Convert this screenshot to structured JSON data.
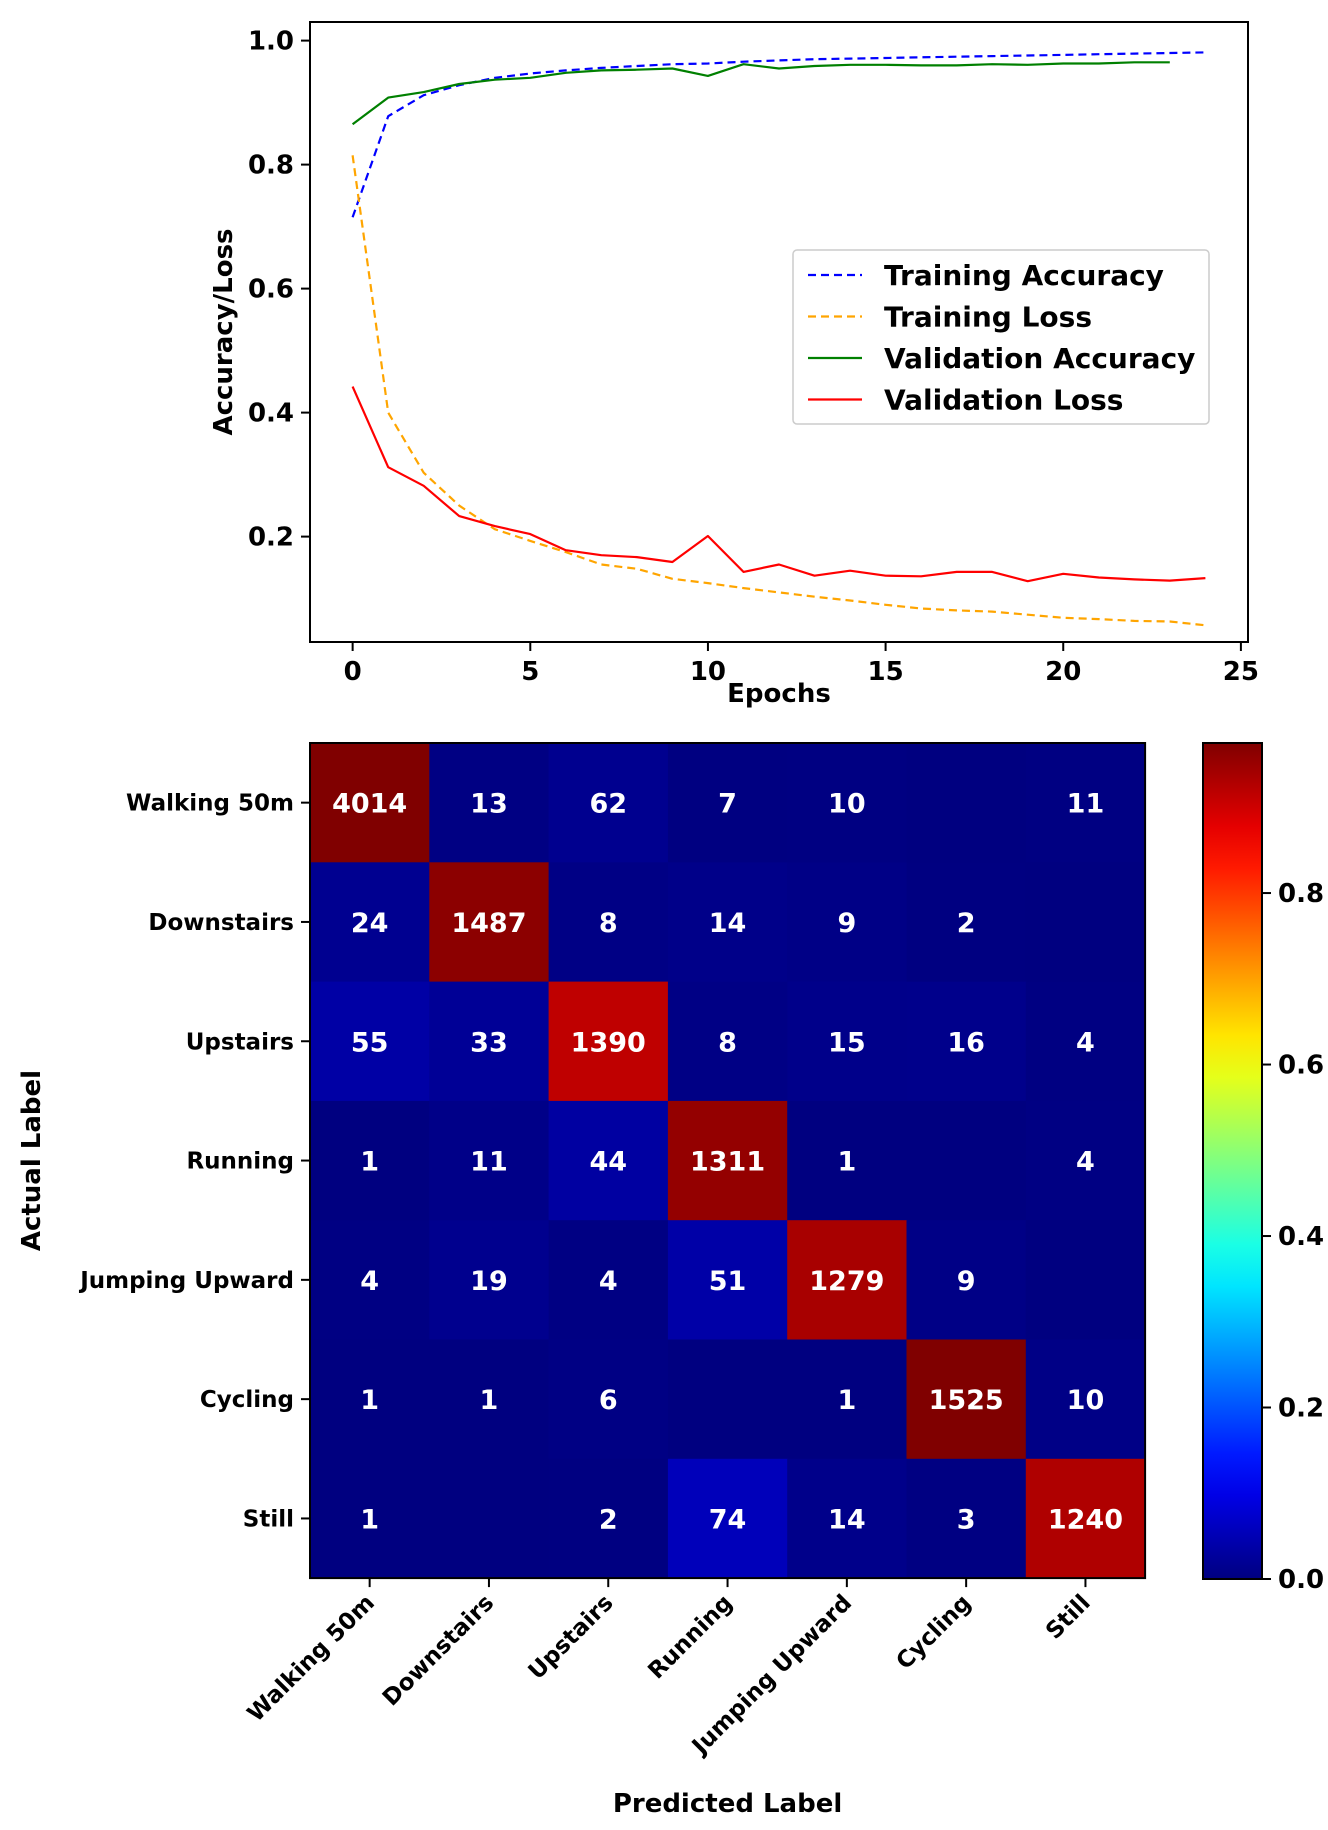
{
  "chart_data": [
    {
      "type": "line",
      "title": "",
      "xlabel": "Epochs",
      "ylabel": "Accuracy/Loss",
      "xlim": [
        -1.2,
        25.2
      ],
      "ylim": [
        0.03,
        1.03
      ],
      "xticks": [
        0,
        5,
        10,
        15,
        20,
        25
      ],
      "yticks": [
        0.2,
        0.4,
        0.6,
        0.8,
        1.0
      ],
      "xtick_labels": [
        "0",
        "5",
        "10",
        "15",
        "20",
        "25"
      ],
      "ytick_labels": [
        "0.2",
        "0.4",
        "0.6",
        "0.8",
        "1.0"
      ],
      "legend_position": "center-right",
      "grid": false,
      "series": [
        {
          "name": "Training Accuracy",
          "color": "#0000ff",
          "style": "dashed",
          "x": [
            0,
            1,
            2,
            3,
            4,
            5,
            6,
            7,
            8,
            9,
            10,
            11,
            12,
            13,
            14,
            15,
            16,
            17,
            18,
            19,
            20,
            21,
            22,
            23,
            24
          ],
          "values": [
            0.715,
            0.878,
            0.912,
            0.928,
            0.94,
            0.947,
            0.952,
            0.956,
            0.959,
            0.962,
            0.963,
            0.966,
            0.968,
            0.97,
            0.971,
            0.972,
            0.973,
            0.974,
            0.975,
            0.976,
            0.977,
            0.978,
            0.979,
            0.98,
            0.981
          ]
        },
        {
          "name": "Training Loss",
          "color": "#ffa500",
          "style": "dashed",
          "x": [
            0,
            1,
            2,
            3,
            4,
            5,
            6,
            7,
            8,
            9,
            10,
            11,
            12,
            13,
            14,
            15,
            16,
            17,
            18,
            19,
            20,
            21,
            22,
            23,
            24
          ],
          "values": [
            0.815,
            0.4,
            0.303,
            0.25,
            0.212,
            0.193,
            0.175,
            0.155,
            0.148,
            0.132,
            0.125,
            0.117,
            0.11,
            0.103,
            0.097,
            0.09,
            0.084,
            0.081,
            0.079,
            0.074,
            0.069,
            0.067,
            0.064,
            0.063,
            0.057
          ]
        },
        {
          "name": "Validation Accuracy",
          "color": "#008000",
          "style": "solid",
          "x": [
            0,
            1,
            2,
            3,
            4,
            5,
            6,
            7,
            8,
            9,
            10,
            11,
            12,
            13,
            14,
            15,
            16,
            17,
            18,
            19,
            20,
            21,
            22,
            23
          ],
          "values": [
            0.865,
            0.908,
            0.917,
            0.93,
            0.937,
            0.94,
            0.948,
            0.952,
            0.953,
            0.955,
            0.943,
            0.962,
            0.955,
            0.959,
            0.961,
            0.961,
            0.96,
            0.96,
            0.962,
            0.961,
            0.963,
            0.963,
            0.965,
            0.965
          ]
        },
        {
          "name": "Validation Loss",
          "color": "#ff0000",
          "style": "solid",
          "x": [
            0,
            1,
            2,
            3,
            4,
            5,
            6,
            7,
            8,
            9,
            10,
            11,
            12,
            13,
            14,
            15,
            16,
            17,
            18,
            19,
            20,
            21,
            22,
            23,
            24
          ],
          "values": [
            0.442,
            0.312,
            0.282,
            0.233,
            0.217,
            0.204,
            0.178,
            0.17,
            0.167,
            0.159,
            0.201,
            0.143,
            0.155,
            0.137,
            0.145,
            0.137,
            0.136,
            0.143,
            0.143,
            0.128,
            0.14,
            0.134,
            0.131,
            0.129,
            0.133
          ]
        }
      ]
    },
    {
      "type": "heatmap",
      "title": "",
      "xlabel": "Predicted Label",
      "ylabel": "Actual Label",
      "categories": [
        "Walking 50m",
        "Downstairs",
        "Upstairs",
        "Running",
        "Jumping Upward",
        "Cycling",
        "Still"
      ],
      "matrix": [
        [
          4014,
          13,
          62,
          7,
          10,
          0,
          11
        ],
        [
          24,
          1487,
          8,
          14,
          9,
          2,
          0
        ],
        [
          55,
          33,
          1390,
          8,
          15,
          16,
          4
        ],
        [
          1,
          11,
          44,
          1311,
          1,
          0,
          4
        ],
        [
          4,
          19,
          4,
          51,
          1279,
          9,
          0
        ],
        [
          1,
          1,
          6,
          0,
          1,
          1525,
          10
        ],
        [
          1,
          0,
          2,
          74,
          14,
          3,
          1240
        ]
      ],
      "cell_labels": [
        [
          "4014",
          "13",
          "62",
          "7",
          "10",
          "",
          "11"
        ],
        [
          "24",
          "1487",
          "8",
          "14",
          "9",
          "2",
          ""
        ],
        [
          "55",
          "33",
          "1390",
          "8",
          "15",
          "16",
          "4"
        ],
        [
          "1",
          "11",
          "44",
          "1311",
          "1",
          "",
          "4"
        ],
        [
          "4",
          "19",
          "4",
          "51",
          "1279",
          "9",
          ""
        ],
        [
          "1",
          "1",
          "6",
          "",
          "1",
          "1525",
          "10"
        ],
        [
          "1",
          "",
          "2",
          "74",
          "14",
          "3",
          "1240"
        ]
      ],
      "normalize": "row",
      "colormap": "jet",
      "colorbar": {
        "range": [
          0.0,
          0.975
        ],
        "ticks": [
          0.0,
          0.2,
          0.4,
          0.6,
          0.8
        ],
        "tick_labels": [
          "0.0",
          "0.2",
          "0.4",
          "0.6",
          "0.8"
        ]
      }
    }
  ]
}
